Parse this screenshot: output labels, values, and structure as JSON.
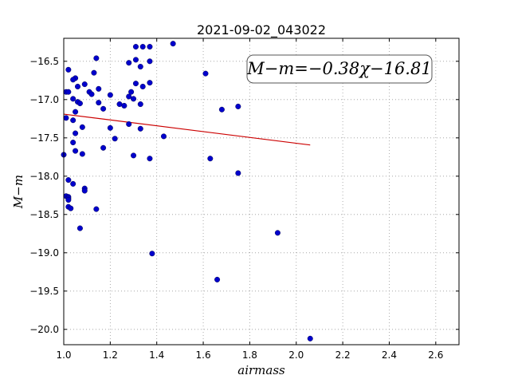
{
  "chart_data": {
    "type": "scatter",
    "title": "2021-09-02_043022",
    "xlabel": "airmass",
    "ylabel": "M−m",
    "xlim": [
      1.0,
      2.7
    ],
    "ylim": [
      -16.2,
      -20.2
    ],
    "y_inverted": true,
    "grid": true,
    "x_ticks": [
      "1.0",
      "1.2",
      "1.4",
      "1.6",
      "1.8",
      "2.0",
      "2.2",
      "2.4",
      "2.6"
    ],
    "y_ticks": [
      "−16.5",
      "−17.0",
      "−17.5",
      "−18.0",
      "−18.5",
      "−19.0",
      "−19.5",
      "−20.0"
    ],
    "marker_color": "#0000cc",
    "fit_color": "#cc0000",
    "annotation": "M−m=−0.38χ−16.81",
    "annotation_placement": "top-right",
    "fit_line": {
      "slope": -0.38,
      "intercept": -16.81,
      "x_range": [
        1.0,
        2.06
      ]
    },
    "points": [
      {
        "x": 1.47,
        "y": -16.27
      },
      {
        "x": 1.31,
        "y": -16.31
      },
      {
        "x": 1.34,
        "y": -16.31
      },
      {
        "x": 1.37,
        "y": -16.31
      },
      {
        "x": 1.14,
        "y": -16.46
      },
      {
        "x": 1.31,
        "y": -16.48
      },
      {
        "x": 1.28,
        "y": -16.52
      },
      {
        "x": 1.37,
        "y": -16.5
      },
      {
        "x": 1.33,
        "y": -16.57
      },
      {
        "x": 1.02,
        "y": -16.61
      },
      {
        "x": 1.13,
        "y": -16.65
      },
      {
        "x": 1.61,
        "y": -16.66
      },
      {
        "x": 1.05,
        "y": -16.72
      },
      {
        "x": 1.04,
        "y": -16.74
      },
      {
        "x": 1.09,
        "y": -16.8
      },
      {
        "x": 1.06,
        "y": -16.83
      },
      {
        "x": 1.31,
        "y": -16.79
      },
      {
        "x": 1.37,
        "y": -16.78
      },
      {
        "x": 1.34,
        "y": -16.83
      },
      {
        "x": 1.15,
        "y": -16.86
      },
      {
        "x": 1.01,
        "y": -16.9
      },
      {
        "x": 1.02,
        "y": -16.9
      },
      {
        "x": 1.11,
        "y": -16.9
      },
      {
        "x": 1.12,
        "y": -16.93
      },
      {
        "x": 1.2,
        "y": -16.94
      },
      {
        "x": 1.29,
        "y": -16.9
      },
      {
        "x": 1.28,
        "y": -16.96
      },
      {
        "x": 1.04,
        "y": -16.99
      },
      {
        "x": 1.3,
        "y": -16.99
      },
      {
        "x": 1.06,
        "y": -17.03
      },
      {
        "x": 1.07,
        "y": -17.05
      },
      {
        "x": 1.15,
        "y": -17.04
      },
      {
        "x": 1.24,
        "y": -17.06
      },
      {
        "x": 1.26,
        "y": -17.08
      },
      {
        "x": 1.33,
        "y": -17.06
      },
      {
        "x": 1.75,
        "y": -17.09
      },
      {
        "x": 1.17,
        "y": -17.12
      },
      {
        "x": 1.68,
        "y": -17.13
      },
      {
        "x": 1.05,
        "y": -17.16
      },
      {
        "x": 1.01,
        "y": -17.24
      },
      {
        "x": 1.04,
        "y": -17.27
      },
      {
        "x": 1.28,
        "y": -17.32
      },
      {
        "x": 1.08,
        "y": -17.36
      },
      {
        "x": 1.2,
        "y": -17.37
      },
      {
        "x": 1.33,
        "y": -17.38
      },
      {
        "x": 1.05,
        "y": -17.44
      },
      {
        "x": 1.43,
        "y": -17.48
      },
      {
        "x": 1.22,
        "y": -17.51
      },
      {
        "x": 1.04,
        "y": -17.56
      },
      {
        "x": 1.17,
        "y": -17.63
      },
      {
        "x": 1.05,
        "y": -17.67
      },
      {
        "x": 1.0,
        "y": -17.72
      },
      {
        "x": 1.08,
        "y": -17.71
      },
      {
        "x": 1.3,
        "y": -17.73
      },
      {
        "x": 1.37,
        "y": -17.77
      },
      {
        "x": 1.63,
        "y": -17.77
      },
      {
        "x": 1.75,
        "y": -17.96
      },
      {
        "x": 1.02,
        "y": -18.05
      },
      {
        "x": 1.04,
        "y": -18.1
      },
      {
        "x": 1.09,
        "y": -18.16
      },
      {
        "x": 1.09,
        "y": -18.19
      },
      {
        "x": 1.01,
        "y": -18.26
      },
      {
        "x": 1.02,
        "y": -18.27
      },
      {
        "x": 1.02,
        "y": -18.29
      },
      {
        "x": 1.02,
        "y": -18.31
      },
      {
        "x": 1.02,
        "y": -18.4
      },
      {
        "x": 1.03,
        "y": -18.42
      },
      {
        "x": 1.14,
        "y": -18.43
      },
      {
        "x": 1.07,
        "y": -18.68
      },
      {
        "x": 1.92,
        "y": -18.74
      },
      {
        "x": 1.38,
        "y": -19.01
      },
      {
        "x": 1.66,
        "y": -19.35
      },
      {
        "x": 2.06,
        "y": -20.12
      }
    ]
  }
}
